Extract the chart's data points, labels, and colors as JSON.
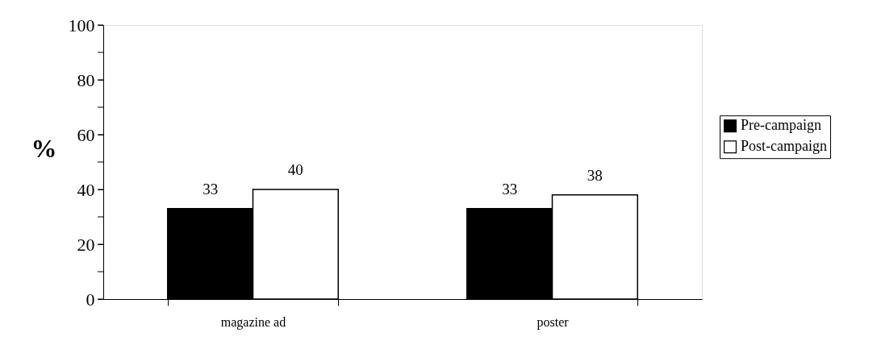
{
  "chart_data": {
    "type": "bar",
    "ylabel": "%",
    "categories": [
      "magazine ad",
      "poster"
    ],
    "series": [
      {
        "name": "Pre-campaign",
        "color": "#000000",
        "values": [
          33,
          33
        ]
      },
      {
        "name": "Post-campaign",
        "color": "#ffffff",
        "values": [
          40,
          38
        ]
      }
    ],
    "ylim": [
      0,
      100
    ],
    "yticks": [
      0,
      {
        "value": 10,
        "label": null
      },
      20,
      {
        "value": 30,
        "label": null
      },
      40,
      {
        "value": 50,
        "label": null
      },
      60,
      {
        "value": 70,
        "label": null
      },
      80,
      {
        "value": 90,
        "label": null
      },
      100
    ],
    "data_labels": true,
    "grid": false,
    "legend": "right"
  }
}
